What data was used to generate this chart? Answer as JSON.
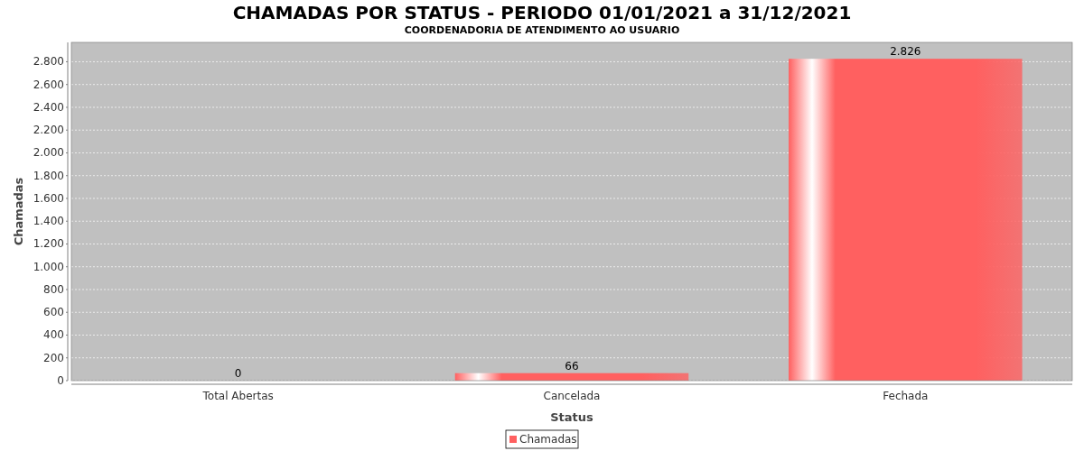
{
  "chart_data": {
    "type": "bar",
    "title": "CHAMADAS POR STATUS - PERIODO 01/01/2021 a 31/12/2021",
    "subtitle": "COORDENADORIA DE ATENDIMENTO AO USUARIO",
    "xlabel": "Status",
    "ylabel": "Chamadas",
    "categories": [
      "Total Abertas",
      "Cancelada",
      "Fechada"
    ],
    "series": [
      {
        "name": "Chamadas",
        "color": "#ff6060",
        "values": [
          0,
          66,
          2826
        ],
        "value_labels": [
          "0",
          "66",
          "2.826"
        ]
      }
    ],
    "ylim": [
      0,
      2970
    ],
    "yticks": [
      0,
      200,
      400,
      600,
      800,
      {
        "value": 1000,
        "label": "1.000"
      },
      {
        "value": 1200,
        "label": "1.200"
      },
      {
        "value": 1400,
        "label": "1.400"
      },
      {
        "value": 1600,
        "label": "1.600"
      },
      {
        "value": 1800,
        "label": "1.800"
      },
      {
        "value": 2000,
        "label": "2.000"
      },
      {
        "value": 2200,
        "label": "2.200"
      },
      {
        "value": 2400,
        "label": "2.400"
      },
      {
        "value": 2600,
        "label": "2.600"
      },
      {
        "value": 2800,
        "label": "2.800"
      }
    ],
    "grid": "y",
    "legend": "bottom"
  }
}
